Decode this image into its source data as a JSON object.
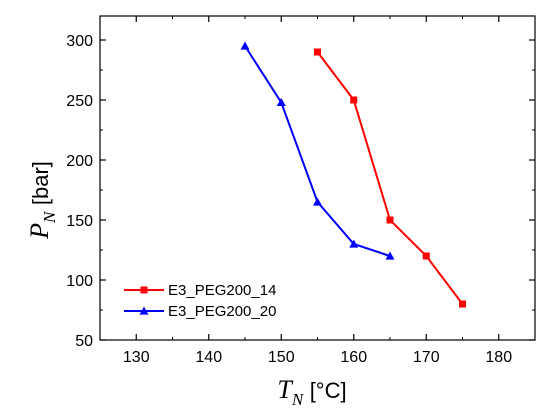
{
  "chart_data": {
    "type": "line",
    "xlabel": {
      "symbol": "T",
      "subscript": "N",
      "unit": "[°C]"
    },
    "ylabel": {
      "symbol": "P",
      "subscript": "N",
      "unit": "[bar]"
    },
    "xlim": [
      125,
      185
    ],
    "ylim": [
      50,
      320
    ],
    "xticks": [
      130,
      140,
      150,
      160,
      170,
      180
    ],
    "yticks": [
      50,
      100,
      150,
      200,
      250,
      300
    ],
    "grid": false,
    "legend_position": "bottom-left",
    "series": [
      {
        "name": "E3_PEG200_14",
        "color": "#ff0000",
        "marker": "square",
        "x": [
          155,
          160,
          165,
          170,
          175
        ],
        "y": [
          290,
          250,
          150,
          120,
          80
        ]
      },
      {
        "name": "E3_PEG200_20",
        "color": "#0000ff",
        "marker": "triangle",
        "x": [
          145,
          150,
          155,
          160,
          165
        ],
        "y": [
          295,
          248,
          165,
          130,
          120
        ]
      }
    ]
  }
}
